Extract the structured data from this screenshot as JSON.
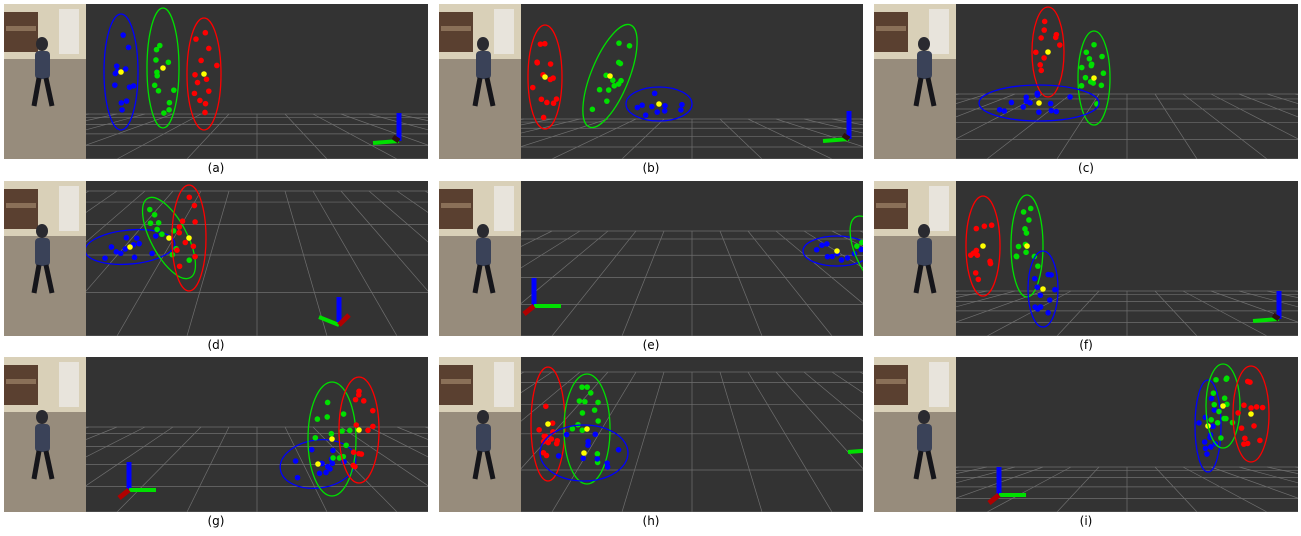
{
  "colors": {
    "background": "#ffffff",
    "scene": "#333333",
    "grid": "#6f6f6f",
    "red": "#ff0000",
    "green": "#00e000",
    "blue": "#0000ff",
    "yellow": "#ffff00"
  },
  "panels": [
    {
      "label": "(a)"
    },
    {
      "label": "(b)"
    },
    {
      "label": "(c)"
    },
    {
      "label": "(d)"
    },
    {
      "label": "(e)"
    },
    {
      "label": "(f)"
    },
    {
      "label": "(g)"
    },
    {
      "label": "(h)"
    },
    {
      "label": "(i)"
    }
  ]
}
